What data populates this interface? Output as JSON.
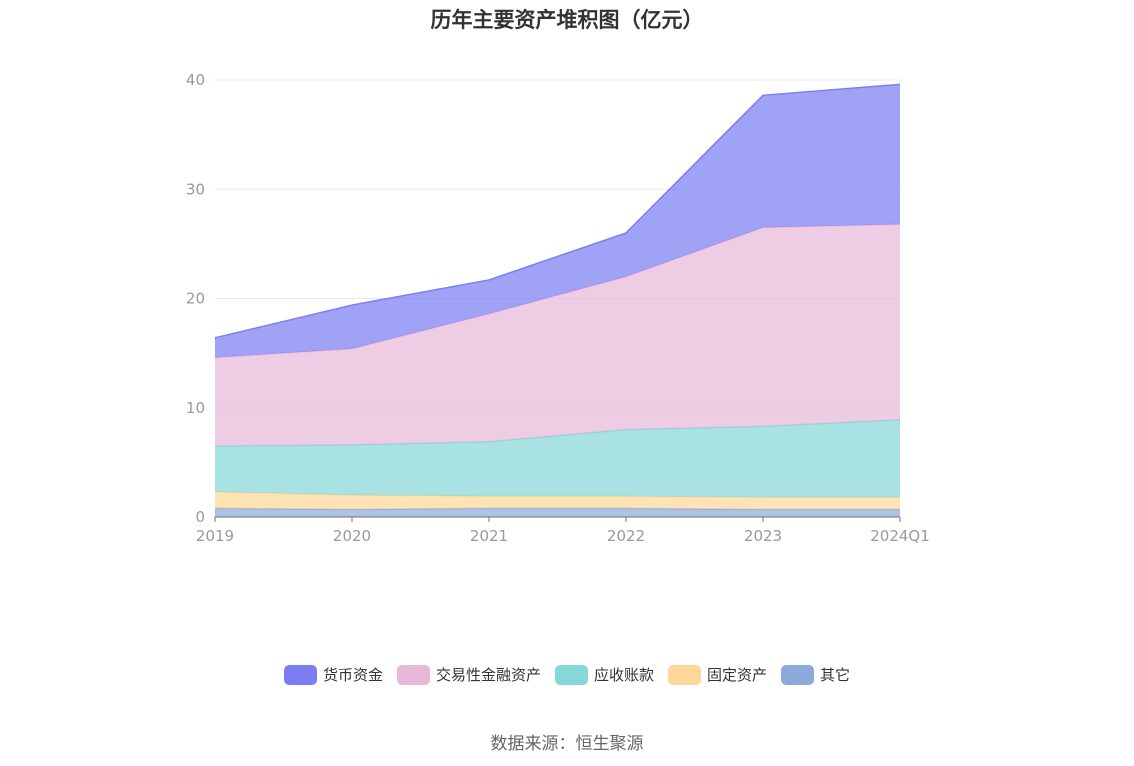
{
  "title": "历年主要资产堆积图（亿元）",
  "source": "数据来源：恒生聚源",
  "chart_data": {
    "type": "area",
    "stacked": true,
    "categories": [
      "2019",
      "2020",
      "2021",
      "2022",
      "2023",
      "2024Q1"
    ],
    "ylim": [
      0,
      40
    ],
    "yticks": [
      "0",
      "10",
      "20",
      "30",
      "40"
    ],
    "grid": true,
    "legend_position": "bottom",
    "series": [
      {
        "name": "其它",
        "color": "#8eaadb",
        "values": [
          0.8,
          0.7,
          0.8,
          0.8,
          0.7,
          0.7
        ]
      },
      {
        "name": "固定资产",
        "color": "#ffd899",
        "values": [
          1.5,
          1.3,
          1.1,
          1.1,
          1.1,
          1.1
        ]
      },
      {
        "name": "应收账款",
        "color": "#86d7d7",
        "values": [
          4.2,
          4.6,
          5.0,
          6.1,
          6.5,
          7.1
        ]
      },
      {
        "name": "交易性金融资产",
        "color": "#e8b8da",
        "values": [
          8.1,
          8.8,
          11.7,
          14.0,
          18.2,
          17.9
        ]
      },
      {
        "name": "货币资金",
        "color": "#7b7ef2",
        "values": [
          1.8,
          4.0,
          3.1,
          4.0,
          12.1,
          12.8
        ]
      }
    ]
  }
}
